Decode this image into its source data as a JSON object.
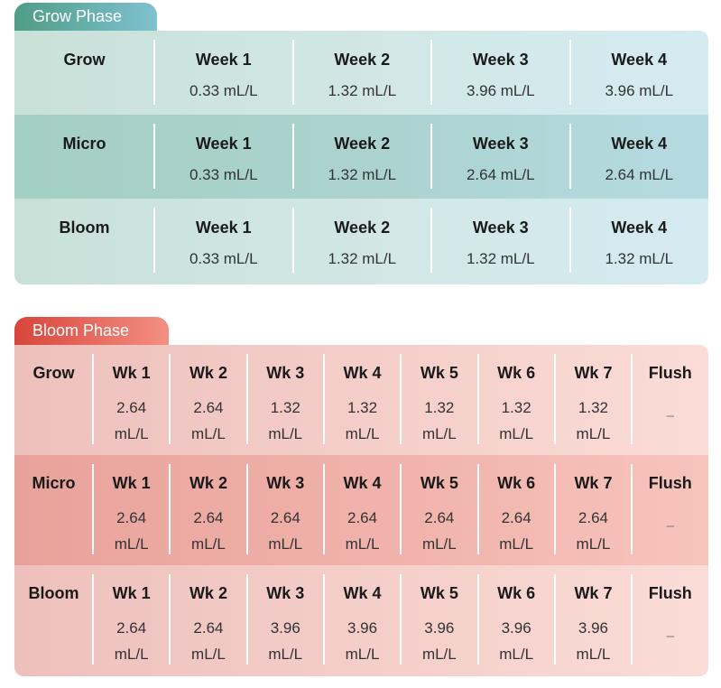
{
  "grow_phase": {
    "title": "Grow Phase",
    "rows": [
      {
        "name": "Grow",
        "cells": [
          {
            "label": "Week 1",
            "value": "0.33 mL/L"
          },
          {
            "label": "Week 2",
            "value": "1.32 mL/L"
          },
          {
            "label": "Week 3",
            "value": "3.96 mL/L"
          },
          {
            "label": "Week 4",
            "value": "3.96 mL/L"
          }
        ]
      },
      {
        "name": "Micro",
        "cells": [
          {
            "label": "Week 1",
            "value": "0.33 mL/L"
          },
          {
            "label": "Week 2",
            "value": "1.32 mL/L"
          },
          {
            "label": "Week 3",
            "value": "2.64 mL/L"
          },
          {
            "label": "Week 4",
            "value": "2.64 mL/L"
          }
        ]
      },
      {
        "name": "Bloom",
        "cells": [
          {
            "label": "Week 1",
            "value": "0.33 mL/L"
          },
          {
            "label": "Week 2",
            "value": "1.32 mL/L"
          },
          {
            "label": "Week 3",
            "value": "1.32 mL/L"
          },
          {
            "label": "Week 4",
            "value": "1.32 mL/L"
          }
        ]
      }
    ]
  },
  "bloom_phase": {
    "title": "Bloom Phase",
    "rows": [
      {
        "name": "Grow",
        "cells": [
          {
            "label": "Wk 1",
            "amount": "2.64",
            "unit": "mL/L"
          },
          {
            "label": "Wk 2",
            "amount": "2.64",
            "unit": "mL/L"
          },
          {
            "label": "Wk 3",
            "amount": "1.32",
            "unit": "mL/L"
          },
          {
            "label": "Wk 4",
            "amount": "1.32",
            "unit": "mL/L"
          },
          {
            "label": "Wk 5",
            "amount": "1.32",
            "unit": "mL/L"
          },
          {
            "label": "Wk 6",
            "amount": "1.32",
            "unit": "mL/L"
          },
          {
            "label": "Wk 7",
            "amount": "1.32",
            "unit": "mL/L"
          },
          {
            "label": "Flush",
            "dash": "–"
          }
        ]
      },
      {
        "name": "Micro",
        "cells": [
          {
            "label": "Wk 1",
            "amount": "2.64",
            "unit": "mL/L"
          },
          {
            "label": "Wk 2",
            "amount": "2.64",
            "unit": "mL/L"
          },
          {
            "label": "Wk 3",
            "amount": "2.64",
            "unit": "mL/L"
          },
          {
            "label": "Wk 4",
            "amount": "2.64",
            "unit": "mL/L"
          },
          {
            "label": "Wk 5",
            "amount": "2.64",
            "unit": "mL/L"
          },
          {
            "label": "Wk 6",
            "amount": "2.64",
            "unit": "mL/L"
          },
          {
            "label": "Wk 7",
            "amount": "2.64",
            "unit": "mL/L"
          },
          {
            "label": "Flush",
            "dash": "–"
          }
        ]
      },
      {
        "name": "Bloom",
        "cells": [
          {
            "label": "Wk 1",
            "amount": "2.64",
            "unit": "mL/L"
          },
          {
            "label": "Wk 2",
            "amount": "2.64",
            "unit": "mL/L"
          },
          {
            "label": "Wk 3",
            "amount": "3.96",
            "unit": "mL/L"
          },
          {
            "label": "Wk 4",
            "amount": "3.96",
            "unit": "mL/L"
          },
          {
            "label": "Wk 5",
            "amount": "3.96",
            "unit": "mL/L"
          },
          {
            "label": "Wk 6",
            "amount": "3.96",
            "unit": "mL/L"
          },
          {
            "label": "Wk 7",
            "amount": "3.96",
            "unit": "mL/L"
          },
          {
            "label": "Flush",
            "dash": "–"
          }
        ]
      }
    ]
  }
}
